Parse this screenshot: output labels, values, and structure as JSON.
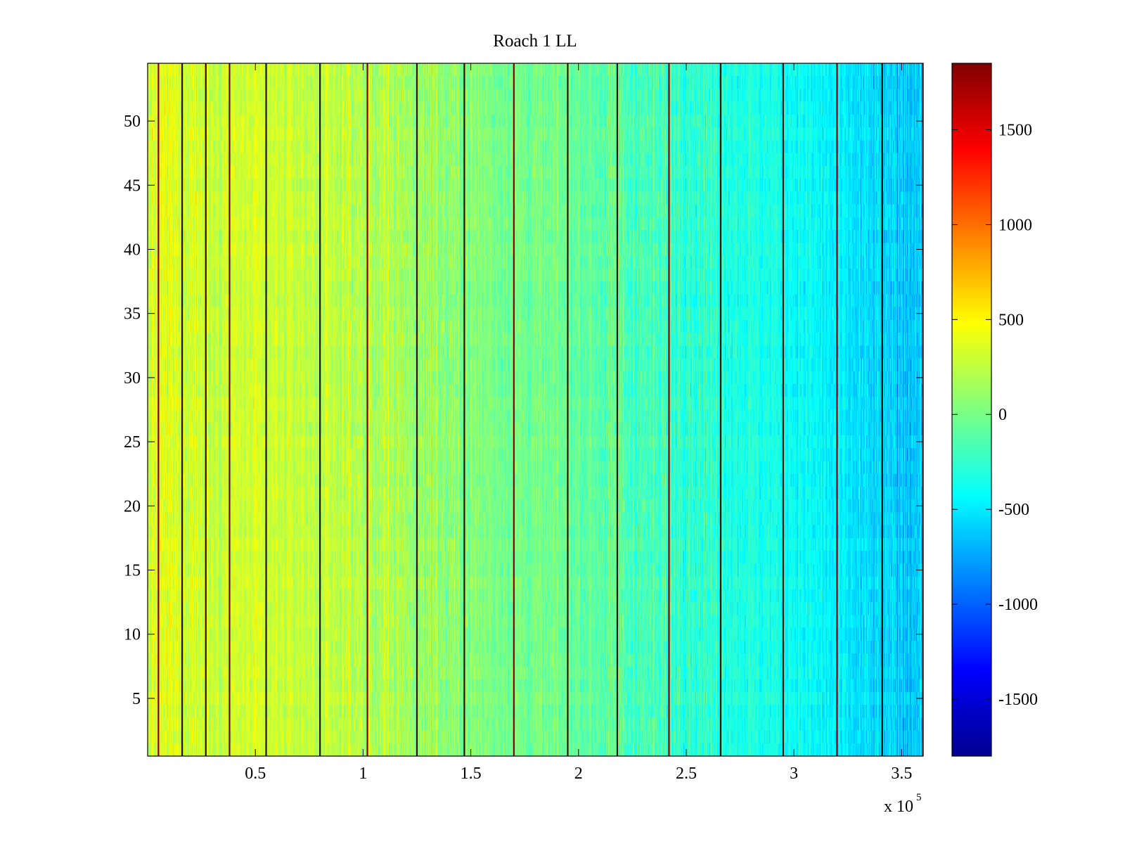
{
  "chart_data": {
    "type": "heatmap",
    "title": "Roach 1 LL",
    "xlabel": "",
    "ylabel": "",
    "x_multiplier_label": "x 10",
    "x_multiplier_exponent": "5",
    "xlim": [
      0,
      3.6
    ],
    "ylim": [
      0.5,
      54.5
    ],
    "x_ticks": [
      0.5,
      1,
      1.5,
      2,
      2.5,
      3,
      3.5
    ],
    "x_tick_labels": [
      "0.5",
      "1",
      "1.5",
      "2",
      "2.5",
      "3",
      "3.5"
    ],
    "y_ticks": [
      5,
      10,
      15,
      20,
      25,
      30,
      35,
      40,
      45,
      50
    ],
    "y_tick_labels": [
      "5",
      "10",
      "15",
      "20",
      "25",
      "30",
      "35",
      "40",
      "45",
      "50"
    ],
    "rows": 54,
    "colormap": "jet",
    "clim": [
      -1800,
      1850
    ],
    "colorbar_ticks": [
      -1500,
      -1000,
      -500,
      0,
      500,
      1000,
      1500
    ],
    "colorbar_tick_labels": [
      "-1500",
      "-1000",
      "-500",
      "0",
      "500",
      "1000",
      "1500"
    ],
    "column_trend": {
      "x": [
        0,
        0.5,
        1,
        1.5,
        2,
        2.5,
        3,
        3.4,
        3.6
      ],
      "mean_value": [
        330,
        300,
        240,
        40,
        -60,
        -230,
        -380,
        -600,
        -620
      ]
    },
    "vertical_lines_x": [
      0.05,
      0.16,
      0.27,
      0.38,
      0.55,
      0.8,
      1.02,
      1.25,
      1.47,
      1.7,
      1.95,
      2.18,
      2.42,
      2.66,
      2.95,
      3.2,
      3.41,
      3.6
    ]
  }
}
